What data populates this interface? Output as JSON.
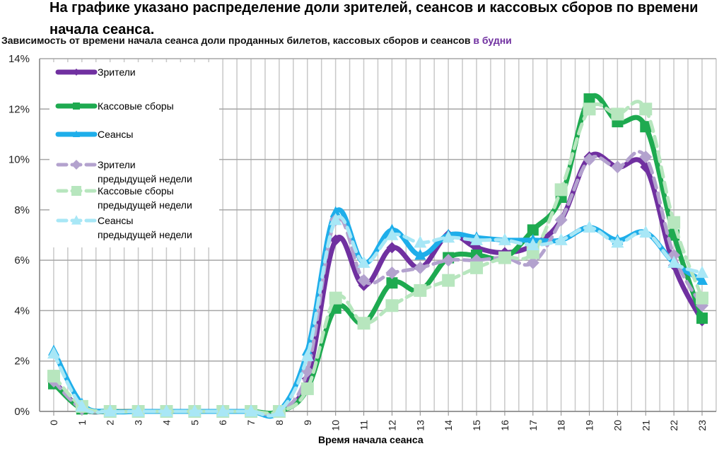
{
  "heading": "На графике указано распределение доли зрителей, сеансов и кассовых сборов по времени начала сеанса.",
  "subtitle": {
    "text": "Зависимость от времени начала сеанса доли проданных билетов, кассовых сборов и сеансов ",
    "accent": "в будни",
    "accent_color": "#7030A0"
  },
  "chart_data": {
    "type": "line",
    "title": "Зависимость от времени начала сеанса доли проданных билетов, кассовых сборов и сеансов в будни",
    "xlabel": "Время начала сеанса",
    "ylabel": "",
    "categories": [
      "0",
      "1",
      "2",
      "3",
      "4",
      "5",
      "6",
      "7",
      "8",
      "9",
      "10",
      "11",
      "12",
      "13",
      "14",
      "15",
      "16",
      "17",
      "18",
      "19",
      "20",
      "21",
      "22",
      "23"
    ],
    "ylim": [
      0,
      14
    ],
    "yticks": [
      "0%",
      "2%",
      "4%",
      "6%",
      "8%",
      "10%",
      "12%",
      "14%"
    ],
    "grid": true,
    "legend_position": "upper-left inside",
    "series": [
      {
        "name": "Зрители",
        "color": "#7030A0",
        "style": "solid",
        "marker": "diamond",
        "values": [
          1.2,
          0.1,
          0,
          0,
          0,
          0,
          0,
          0,
          0,
          1.3,
          6.8,
          5.0,
          6.5,
          5.7,
          7.0,
          6.5,
          6.3,
          6.6,
          7.6,
          10.1,
          9.7,
          9.7,
          5.8,
          3.6
        ]
      },
      {
        "name": "Кассовые сборы",
        "color": "#1EAA50",
        "style": "solid",
        "marker": "square",
        "values": [
          1.1,
          0.1,
          0,
          0,
          0,
          0,
          0,
          0,
          0,
          0.9,
          4.1,
          3.5,
          5.1,
          4.8,
          6.1,
          6.2,
          6.1,
          7.2,
          8.5,
          12.4,
          11.5,
          11.3,
          7.0,
          3.7
        ]
      },
      {
        "name": "Сеансы",
        "color": "#1EAEEA",
        "style": "solid",
        "marker": "triangle",
        "values": [
          2.4,
          0.3,
          0,
          0,
          0,
          0,
          0,
          0,
          0,
          2.4,
          7.9,
          5.9,
          7.2,
          6.2,
          7.0,
          6.9,
          6.8,
          6.8,
          6.8,
          7.3,
          6.8,
          7.1,
          5.9,
          5.2
        ]
      },
      {
        "name": "Зрители предыдущей недели",
        "color": "#B3A2CE",
        "style": "dashed",
        "marker": "diamond",
        "values": [
          1.2,
          0.1,
          0,
          0,
          0,
          0,
          0,
          0,
          0,
          1.6,
          7.6,
          5.2,
          5.5,
          5.7,
          6.0,
          6.0,
          6.1,
          5.9,
          7.6,
          10.0,
          9.7,
          10.1,
          6.2,
          4.2
        ]
      },
      {
        "name": "Кассовые сборы предыдущей недели",
        "color": "#B7E6BE",
        "style": "dashed",
        "marker": "square",
        "values": [
          1.4,
          0.2,
          0,
          0,
          0,
          0,
          0,
          0,
          0,
          0.9,
          4.5,
          3.5,
          4.2,
          4.8,
          5.2,
          5.7,
          6.1,
          6.3,
          8.8,
          12.0,
          11.8,
          12.0,
          7.5,
          4.5
        ]
      },
      {
        "name": "Сеансы предыдущей недели",
        "color": "#A8E7F6",
        "style": "dashed",
        "marker": "triangle",
        "values": [
          2.3,
          0.2,
          0,
          0,
          0,
          0,
          0,
          0,
          0,
          2.2,
          7.6,
          5.9,
          7.0,
          6.7,
          6.9,
          6.8,
          6.8,
          6.6,
          6.8,
          7.3,
          6.7,
          7.1,
          5.9,
          5.5
        ]
      }
    ]
  },
  "legend": [
    {
      "line1": "Зрители",
      "line2": ""
    },
    {
      "line1": "Кассовые сборы",
      "line2": ""
    },
    {
      "line1": "Сеансы",
      "line2": ""
    },
    {
      "line1": "Зрители",
      "line2": "предыдущей недели"
    },
    {
      "line1": "Кассовые сборы",
      "line2": "предыдущей недели"
    },
    {
      "line1": "Сеансы",
      "line2": "предыдущей недели"
    }
  ]
}
